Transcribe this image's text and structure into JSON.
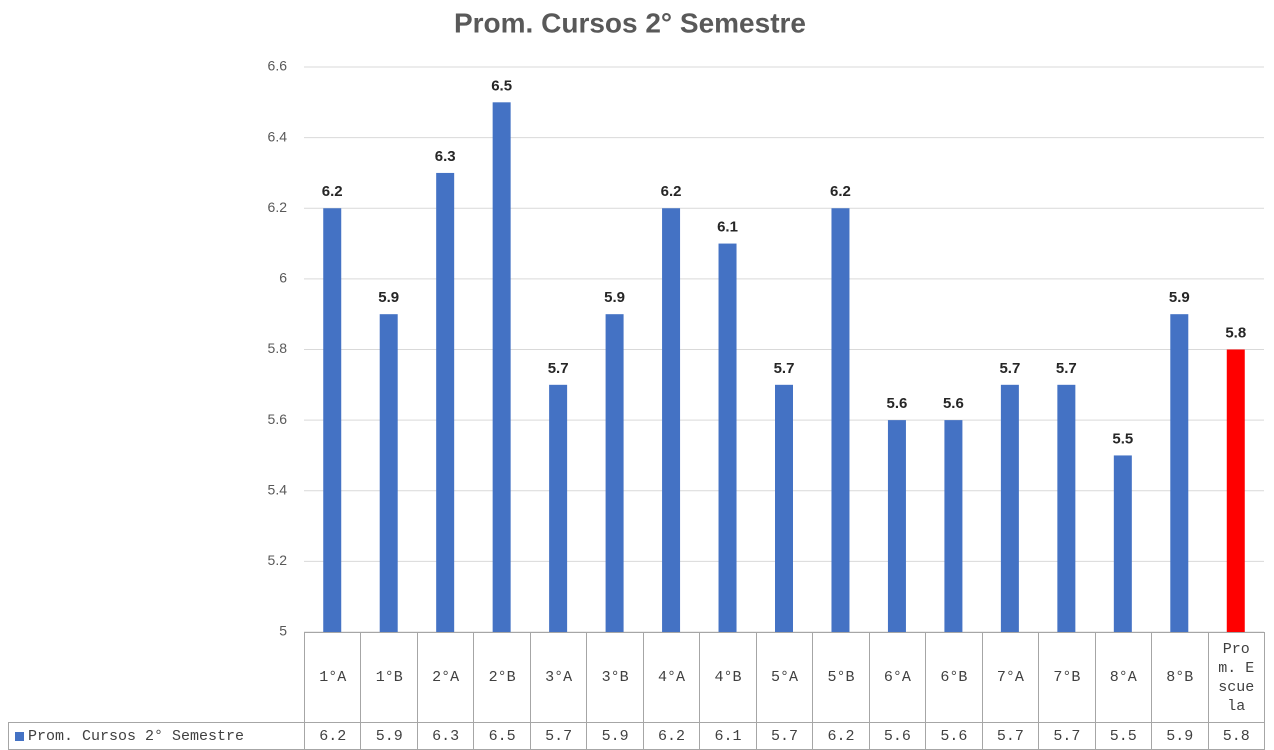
{
  "chart_data": {
    "type": "bar",
    "title": "Prom. Cursos 2° Semestre",
    "categories": [
      "1°A",
      "1°B",
      "2°A",
      "2°B",
      "3°A",
      "3°B",
      "4°A",
      "4°B",
      "5°A",
      "5°B",
      "6°A",
      "6°B",
      "7°A",
      "7°B",
      "8°A",
      "8°B",
      "Prom. Escuela"
    ],
    "series": [
      {
        "name": "Prom. Cursos 2° Semestre",
        "color": "#4472c4",
        "values": [
          6.2,
          5.9,
          6.3,
          6.5,
          5.7,
          5.9,
          6.2,
          6.1,
          5.7,
          6.2,
          5.6,
          5.6,
          5.7,
          5.7,
          5.5,
          5.9,
          5.8
        ]
      }
    ],
    "bar_colors": [
      "#4472c4",
      "#4472c4",
      "#4472c4",
      "#4472c4",
      "#4472c4",
      "#4472c4",
      "#4472c4",
      "#4472c4",
      "#4472c4",
      "#4472c4",
      "#4472c4",
      "#4472c4",
      "#4472c4",
      "#4472c4",
      "#4472c4",
      "#4472c4",
      "#ff0000"
    ],
    "ylim": [
      5,
      6.6
    ],
    "yticks": [
      5,
      5.2,
      5.4,
      5.6,
      5.8,
      6,
      6.2,
      6.4,
      6.6
    ],
    "grid": true,
    "data_table": true
  }
}
